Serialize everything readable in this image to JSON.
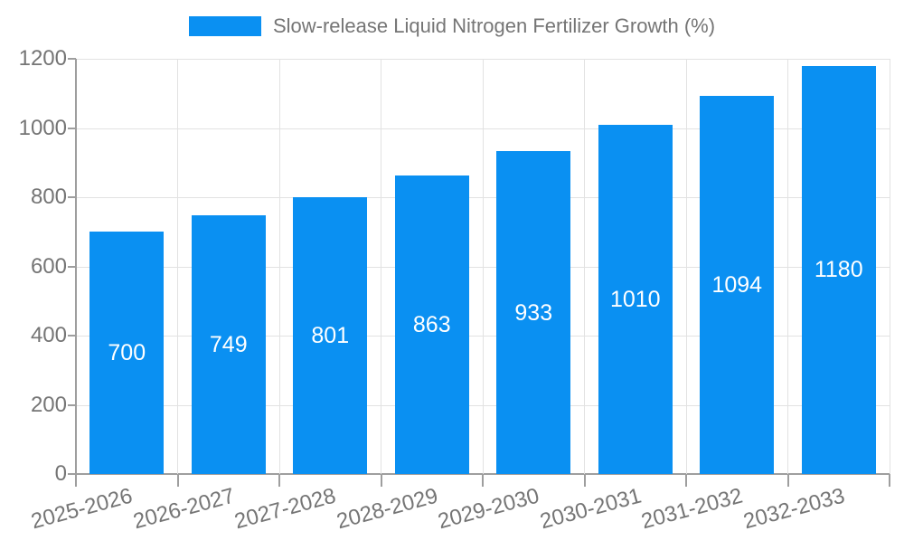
{
  "legend": {
    "label": "Slow-release Liquid Nitrogen Fertilizer Growth (%)",
    "swatch_color": "#0a90f2"
  },
  "chart_data": {
    "type": "bar",
    "title": "",
    "xlabel": "",
    "ylabel": "",
    "categories": [
      "2025-2026",
      "2026-2027",
      "2027-2028",
      "2028-2029",
      "2029-2030",
      "2030-2031",
      "2031-2032",
      "2032-2033"
    ],
    "values": [
      700,
      749,
      801,
      863,
      933,
      1010,
      1094,
      1180
    ],
    "series_name": "Slow-release Liquid Nitrogen Fertilizer Growth (%)",
    "ylim": [
      0,
      1200
    ],
    "yticks": [
      0,
      200,
      400,
      600,
      800,
      1000,
      1200
    ],
    "grid": true,
    "legend_position": "top-center",
    "bar_color": "#0a90f2",
    "value_label_color": "#ffffff",
    "axis_text_color": "#757575",
    "gridline_color": "#e2e2e2",
    "axis_line_color": "#9e9e9e",
    "x_label_rotation_deg": -15
  }
}
